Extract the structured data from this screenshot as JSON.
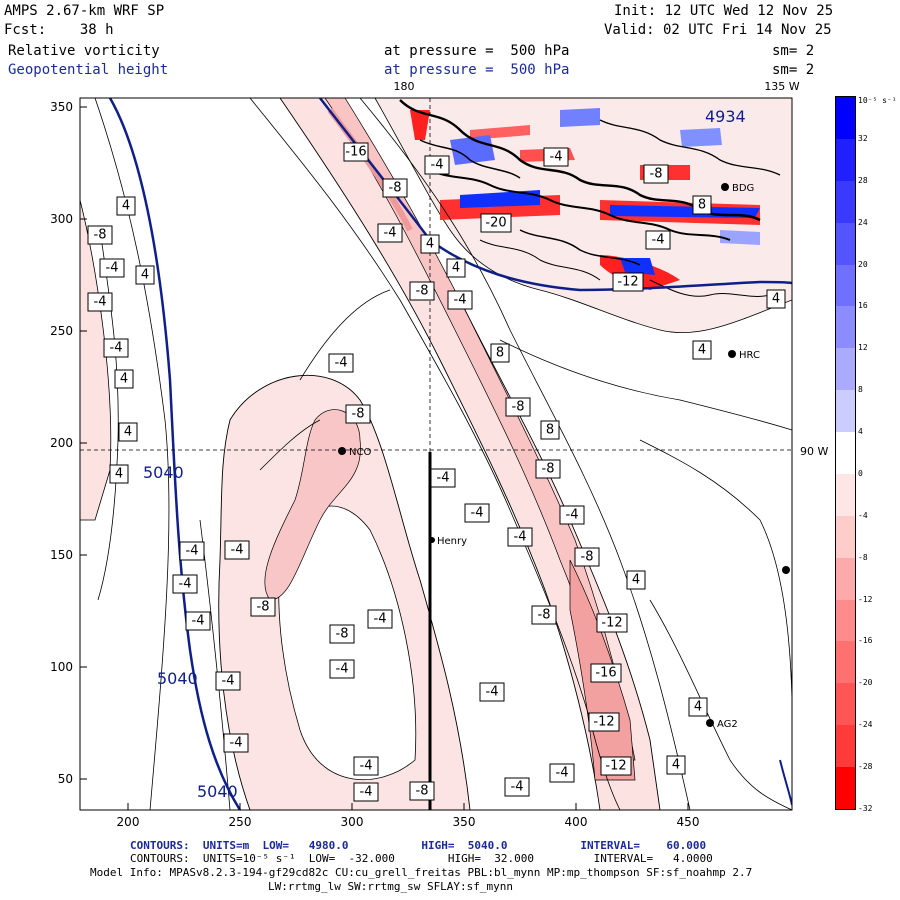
{
  "header": {
    "model": "AMPS 2.67-km WRF SP",
    "fcst": "Fcst:    38 h",
    "init": "Init: 12 UTC Wed 12 Nov 25",
    "valid": "Valid: 02 UTC Fri 14 Nov 25",
    "field1_name": "Relative vorticity",
    "field1_pressure": "at pressure =  500 hPa",
    "field1_smooth": "sm= 2",
    "field2_name": "Geopotential height",
    "field2_pressure": "at pressure =  500 hPa",
    "field2_smooth": "sm= 2"
  },
  "map": {
    "lon_top_180": "180",
    "lon_top_135w": "135 W",
    "lon_right_90w": "90 W",
    "x_ticks": [
      "200",
      "250",
      "300",
      "350",
      "400",
      "450"
    ],
    "y_ticks": [
      "350",
      "300",
      "250",
      "200",
      "150",
      "100",
      "50"
    ],
    "stations": [
      {
        "name": "BDG"
      },
      {
        "name": "HRC"
      },
      {
        "name": "NCO"
      },
      {
        "name": "Henry"
      },
      {
        "name": "AG2"
      }
    ],
    "height_labels": [
      "5040",
      "5040",
      "5040",
      "4934"
    ],
    "vort_labels": [
      "-16",
      "-8",
      "-4",
      "-4",
      "-8",
      "-4",
      "-20",
      "-8",
      "-4",
      "-12",
      "-4",
      "-8",
      "-4",
      "-4",
      "-4",
      "-4",
      "-4",
      "-8",
      "-4",
      "4",
      "4",
      "4",
      "4",
      "4",
      "4",
      "4",
      "4",
      "-8",
      "-4",
      "-8",
      "8",
      "8",
      "-8",
      "-4",
      "-4",
      "-4",
      "-4",
      "-4",
      "-8",
      "-4",
      "-8",
      "-4",
      "-4",
      "-12",
      "-16",
      "-12",
      "-12",
      "-4",
      "-4",
      "-4",
      "-8",
      "-4",
      "-4",
      "4",
      "4",
      "4",
      "4",
      "8",
      "-8",
      "-4"
    ],
    "colors": {
      "height_contour": "#0f1f8a",
      "pos_vort": "#1e3cff",
      "neg_vort": "#ff1e1e"
    }
  },
  "colorbar": {
    "unit": "10⁻⁵ s⁻¹",
    "labels": [
      "32",
      "28",
      "24",
      "20",
      "16",
      "12",
      "8",
      "4",
      "0",
      "-4",
      "-8",
      "-12",
      "-16",
      "-20",
      "-24",
      "-28",
      "-32"
    ],
    "colors": [
      "#0000ff",
      "#2020ff",
      "#3a3aff",
      "#5555ff",
      "#7070ff",
      "#8c8cff",
      "#aaaaff",
      "#ccccff",
      "#ffffff",
      "#ffe6e6",
      "#ffcccc",
      "#ffaaaa",
      "#ff8c8c",
      "#ff7070",
      "#ff5555",
      "#ff3a3a",
      "#ff0000"
    ]
  },
  "footer": {
    "contours1": "CONTOURS:  UNITS=m  LOW=   4980.0           HIGH=  5040.0           INTERVAL=    60.000",
    "contours2": "CONTOURS:  UNITS=10⁻⁵ s⁻¹  LOW=  -32.000        HIGH=  32.000         INTERVAL=   4.0000",
    "model_info": "Model Info: MPASv8.2.3-194-gf29cd82c CU:cu_grell_freitas PBL:bl_mynn MP:mp_thompson SF:sf_noahmp 2.7",
    "model_info2": "LW:rrtmg_lw SW:rrtmg_sw SFLAY:sf_mynn"
  }
}
